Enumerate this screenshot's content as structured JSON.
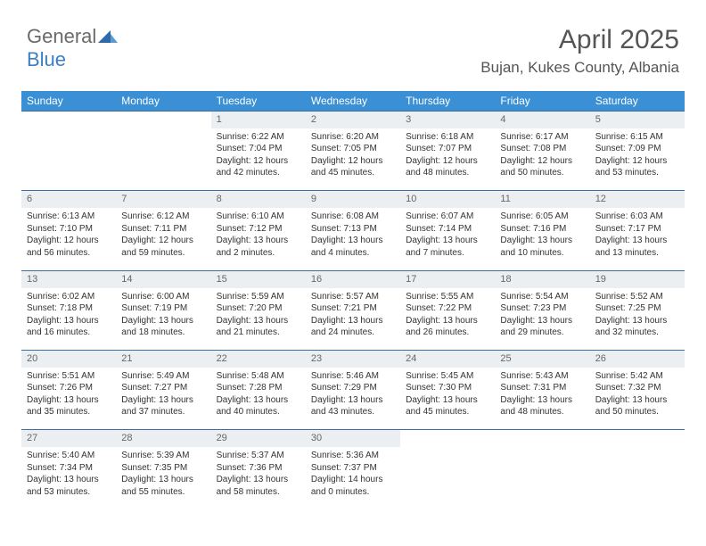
{
  "logo": {
    "part1": "General",
    "part2": "Blue"
  },
  "title": "April 2025",
  "location": "Bujan, Kukes County, Albania",
  "weekdays": [
    "Sunday",
    "Monday",
    "Tuesday",
    "Wednesday",
    "Thursday",
    "Friday",
    "Saturday"
  ],
  "colors": {
    "header_bg": "#3b8fd4",
    "header_text": "#ffffff",
    "daynum_bg": "#eceff1",
    "row_divider": "#3b6fa4",
    "logo_gray": "#6a6a6a",
    "logo_blue": "#3b7fc4",
    "body_text": "#333333"
  },
  "weeks": [
    [
      null,
      null,
      {
        "n": "1",
        "sr": "6:22 AM",
        "ss": "7:04 PM",
        "dl": "12 hours and 42 minutes."
      },
      {
        "n": "2",
        "sr": "6:20 AM",
        "ss": "7:05 PM",
        "dl": "12 hours and 45 minutes."
      },
      {
        "n": "3",
        "sr": "6:18 AM",
        "ss": "7:07 PM",
        "dl": "12 hours and 48 minutes."
      },
      {
        "n": "4",
        "sr": "6:17 AM",
        "ss": "7:08 PM",
        "dl": "12 hours and 50 minutes."
      },
      {
        "n": "5",
        "sr": "6:15 AM",
        "ss": "7:09 PM",
        "dl": "12 hours and 53 minutes."
      }
    ],
    [
      {
        "n": "6",
        "sr": "6:13 AM",
        "ss": "7:10 PM",
        "dl": "12 hours and 56 minutes."
      },
      {
        "n": "7",
        "sr": "6:12 AM",
        "ss": "7:11 PM",
        "dl": "12 hours and 59 minutes."
      },
      {
        "n": "8",
        "sr": "6:10 AM",
        "ss": "7:12 PM",
        "dl": "13 hours and 2 minutes."
      },
      {
        "n": "9",
        "sr": "6:08 AM",
        "ss": "7:13 PM",
        "dl": "13 hours and 4 minutes."
      },
      {
        "n": "10",
        "sr": "6:07 AM",
        "ss": "7:14 PM",
        "dl": "13 hours and 7 minutes."
      },
      {
        "n": "11",
        "sr": "6:05 AM",
        "ss": "7:16 PM",
        "dl": "13 hours and 10 minutes."
      },
      {
        "n": "12",
        "sr": "6:03 AM",
        "ss": "7:17 PM",
        "dl": "13 hours and 13 minutes."
      }
    ],
    [
      {
        "n": "13",
        "sr": "6:02 AM",
        "ss": "7:18 PM",
        "dl": "13 hours and 16 minutes."
      },
      {
        "n": "14",
        "sr": "6:00 AM",
        "ss": "7:19 PM",
        "dl": "13 hours and 18 minutes."
      },
      {
        "n": "15",
        "sr": "5:59 AM",
        "ss": "7:20 PM",
        "dl": "13 hours and 21 minutes."
      },
      {
        "n": "16",
        "sr": "5:57 AM",
        "ss": "7:21 PM",
        "dl": "13 hours and 24 minutes."
      },
      {
        "n": "17",
        "sr": "5:55 AM",
        "ss": "7:22 PM",
        "dl": "13 hours and 26 minutes."
      },
      {
        "n": "18",
        "sr": "5:54 AM",
        "ss": "7:23 PM",
        "dl": "13 hours and 29 minutes."
      },
      {
        "n": "19",
        "sr": "5:52 AM",
        "ss": "7:25 PM",
        "dl": "13 hours and 32 minutes."
      }
    ],
    [
      {
        "n": "20",
        "sr": "5:51 AM",
        "ss": "7:26 PM",
        "dl": "13 hours and 35 minutes."
      },
      {
        "n": "21",
        "sr": "5:49 AM",
        "ss": "7:27 PM",
        "dl": "13 hours and 37 minutes."
      },
      {
        "n": "22",
        "sr": "5:48 AM",
        "ss": "7:28 PM",
        "dl": "13 hours and 40 minutes."
      },
      {
        "n": "23",
        "sr": "5:46 AM",
        "ss": "7:29 PM",
        "dl": "13 hours and 43 minutes."
      },
      {
        "n": "24",
        "sr": "5:45 AM",
        "ss": "7:30 PM",
        "dl": "13 hours and 45 minutes."
      },
      {
        "n": "25",
        "sr": "5:43 AM",
        "ss": "7:31 PM",
        "dl": "13 hours and 48 minutes."
      },
      {
        "n": "26",
        "sr": "5:42 AM",
        "ss": "7:32 PM",
        "dl": "13 hours and 50 minutes."
      }
    ],
    [
      {
        "n": "27",
        "sr": "5:40 AM",
        "ss": "7:34 PM",
        "dl": "13 hours and 53 minutes."
      },
      {
        "n": "28",
        "sr": "5:39 AM",
        "ss": "7:35 PM",
        "dl": "13 hours and 55 minutes."
      },
      {
        "n": "29",
        "sr": "5:37 AM",
        "ss": "7:36 PM",
        "dl": "13 hours and 58 minutes."
      },
      {
        "n": "30",
        "sr": "5:36 AM",
        "ss": "7:37 PM",
        "dl": "14 hours and 0 minutes."
      },
      null,
      null,
      null
    ]
  ],
  "labels": {
    "sunrise": "Sunrise: ",
    "sunset": "Sunset: ",
    "daylight": "Daylight: "
  }
}
